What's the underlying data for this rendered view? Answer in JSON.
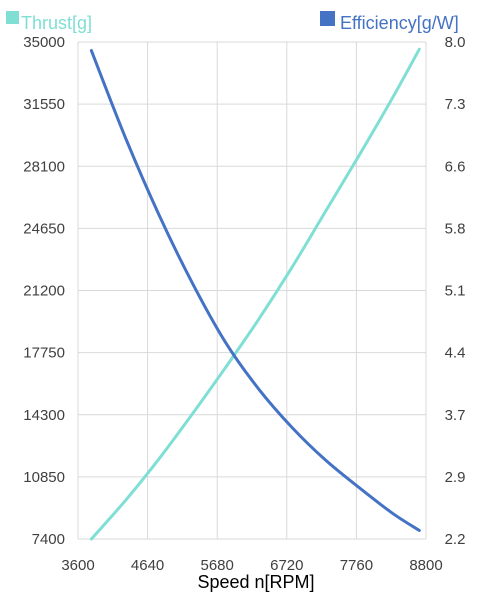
{
  "chart_data": {
    "type": "line",
    "xlabel": "Speed n[RPM]",
    "x_ticks": [
      "3600",
      "4640",
      "5680",
      "6720",
      "7760",
      "8800"
    ],
    "xlim": [
      3600,
      8800
    ],
    "y_left": {
      "ticks": [
        "7400",
        "10850",
        "14300",
        "17750",
        "21200",
        "24650",
        "28100",
        "31550",
        "35000"
      ],
      "lim": [
        7400,
        35000
      ]
    },
    "y_right": {
      "ticks": [
        "2.2",
        "2.9",
        "3.7",
        "4.4",
        "5.1",
        "5.8",
        "6.6",
        "7.3",
        "8.0"
      ],
      "lim": [
        2.2,
        8.0
      ]
    },
    "grid": true,
    "legend_position": "top",
    "series": [
      {
        "name": "Thrust[g]",
        "axis": "left",
        "color": "#7fdfd4",
        "x": [
          3800,
          4300,
          4800,
          5300,
          5800,
          6300,
          6800,
          7300,
          7800,
          8300,
          8700
        ],
        "y": [
          7400,
          9500,
          11800,
          14300,
          16900,
          19600,
          22500,
          25600,
          28700,
          31900,
          34600
        ]
      },
      {
        "name": "Efficiency[g/W]",
        "axis": "right",
        "color": "#4472c4",
        "x": [
          3800,
          4300,
          4800,
          5300,
          5800,
          6300,
          6800,
          7300,
          7800,
          8300,
          8700
        ],
        "y": [
          7.9,
          6.9,
          6.0,
          5.2,
          4.5,
          3.95,
          3.5,
          3.12,
          2.8,
          2.5,
          2.3
        ]
      }
    ]
  }
}
